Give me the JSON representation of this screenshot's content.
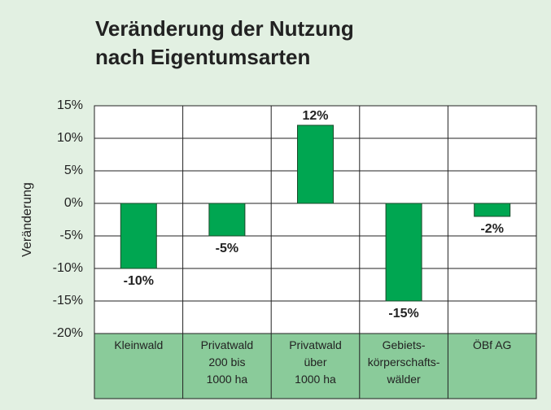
{
  "chart_data": {
    "type": "bar",
    "title": "Veränderung der Nutzung\nnach Eigentumsarten",
    "ylabel": "Veränderung",
    "categories": [
      "Kleinwald",
      "Privatwald\n200 bis\n1000 ha",
      "Privatwald\nüber\n1000 ha",
      "Gebiets-\nkörperschafts-\nwälder",
      "ÖBf AG"
    ],
    "values": [
      -10,
      -5,
      12,
      -15,
      -2
    ],
    "value_labels": [
      "-10%",
      "-5%",
      "12%",
      "-15%",
      "-2%"
    ],
    "color": "#00a651",
    "ylim": [
      -20,
      15
    ],
    "yticks": [
      {
        "value": -20,
        "label": "-20%"
      },
      {
        "value": -15,
        "label": "-15%"
      },
      {
        "value": -10,
        "label": "-10%"
      },
      {
        "value": -5,
        "label": "-5%"
      },
      {
        "value": 0,
        "label": "0%"
      },
      {
        "value": 5,
        "label": "5%"
      },
      {
        "value": 10,
        "label": "10%"
      },
      {
        "value": 15,
        "label": "15%"
      }
    ],
    "grid": true
  }
}
